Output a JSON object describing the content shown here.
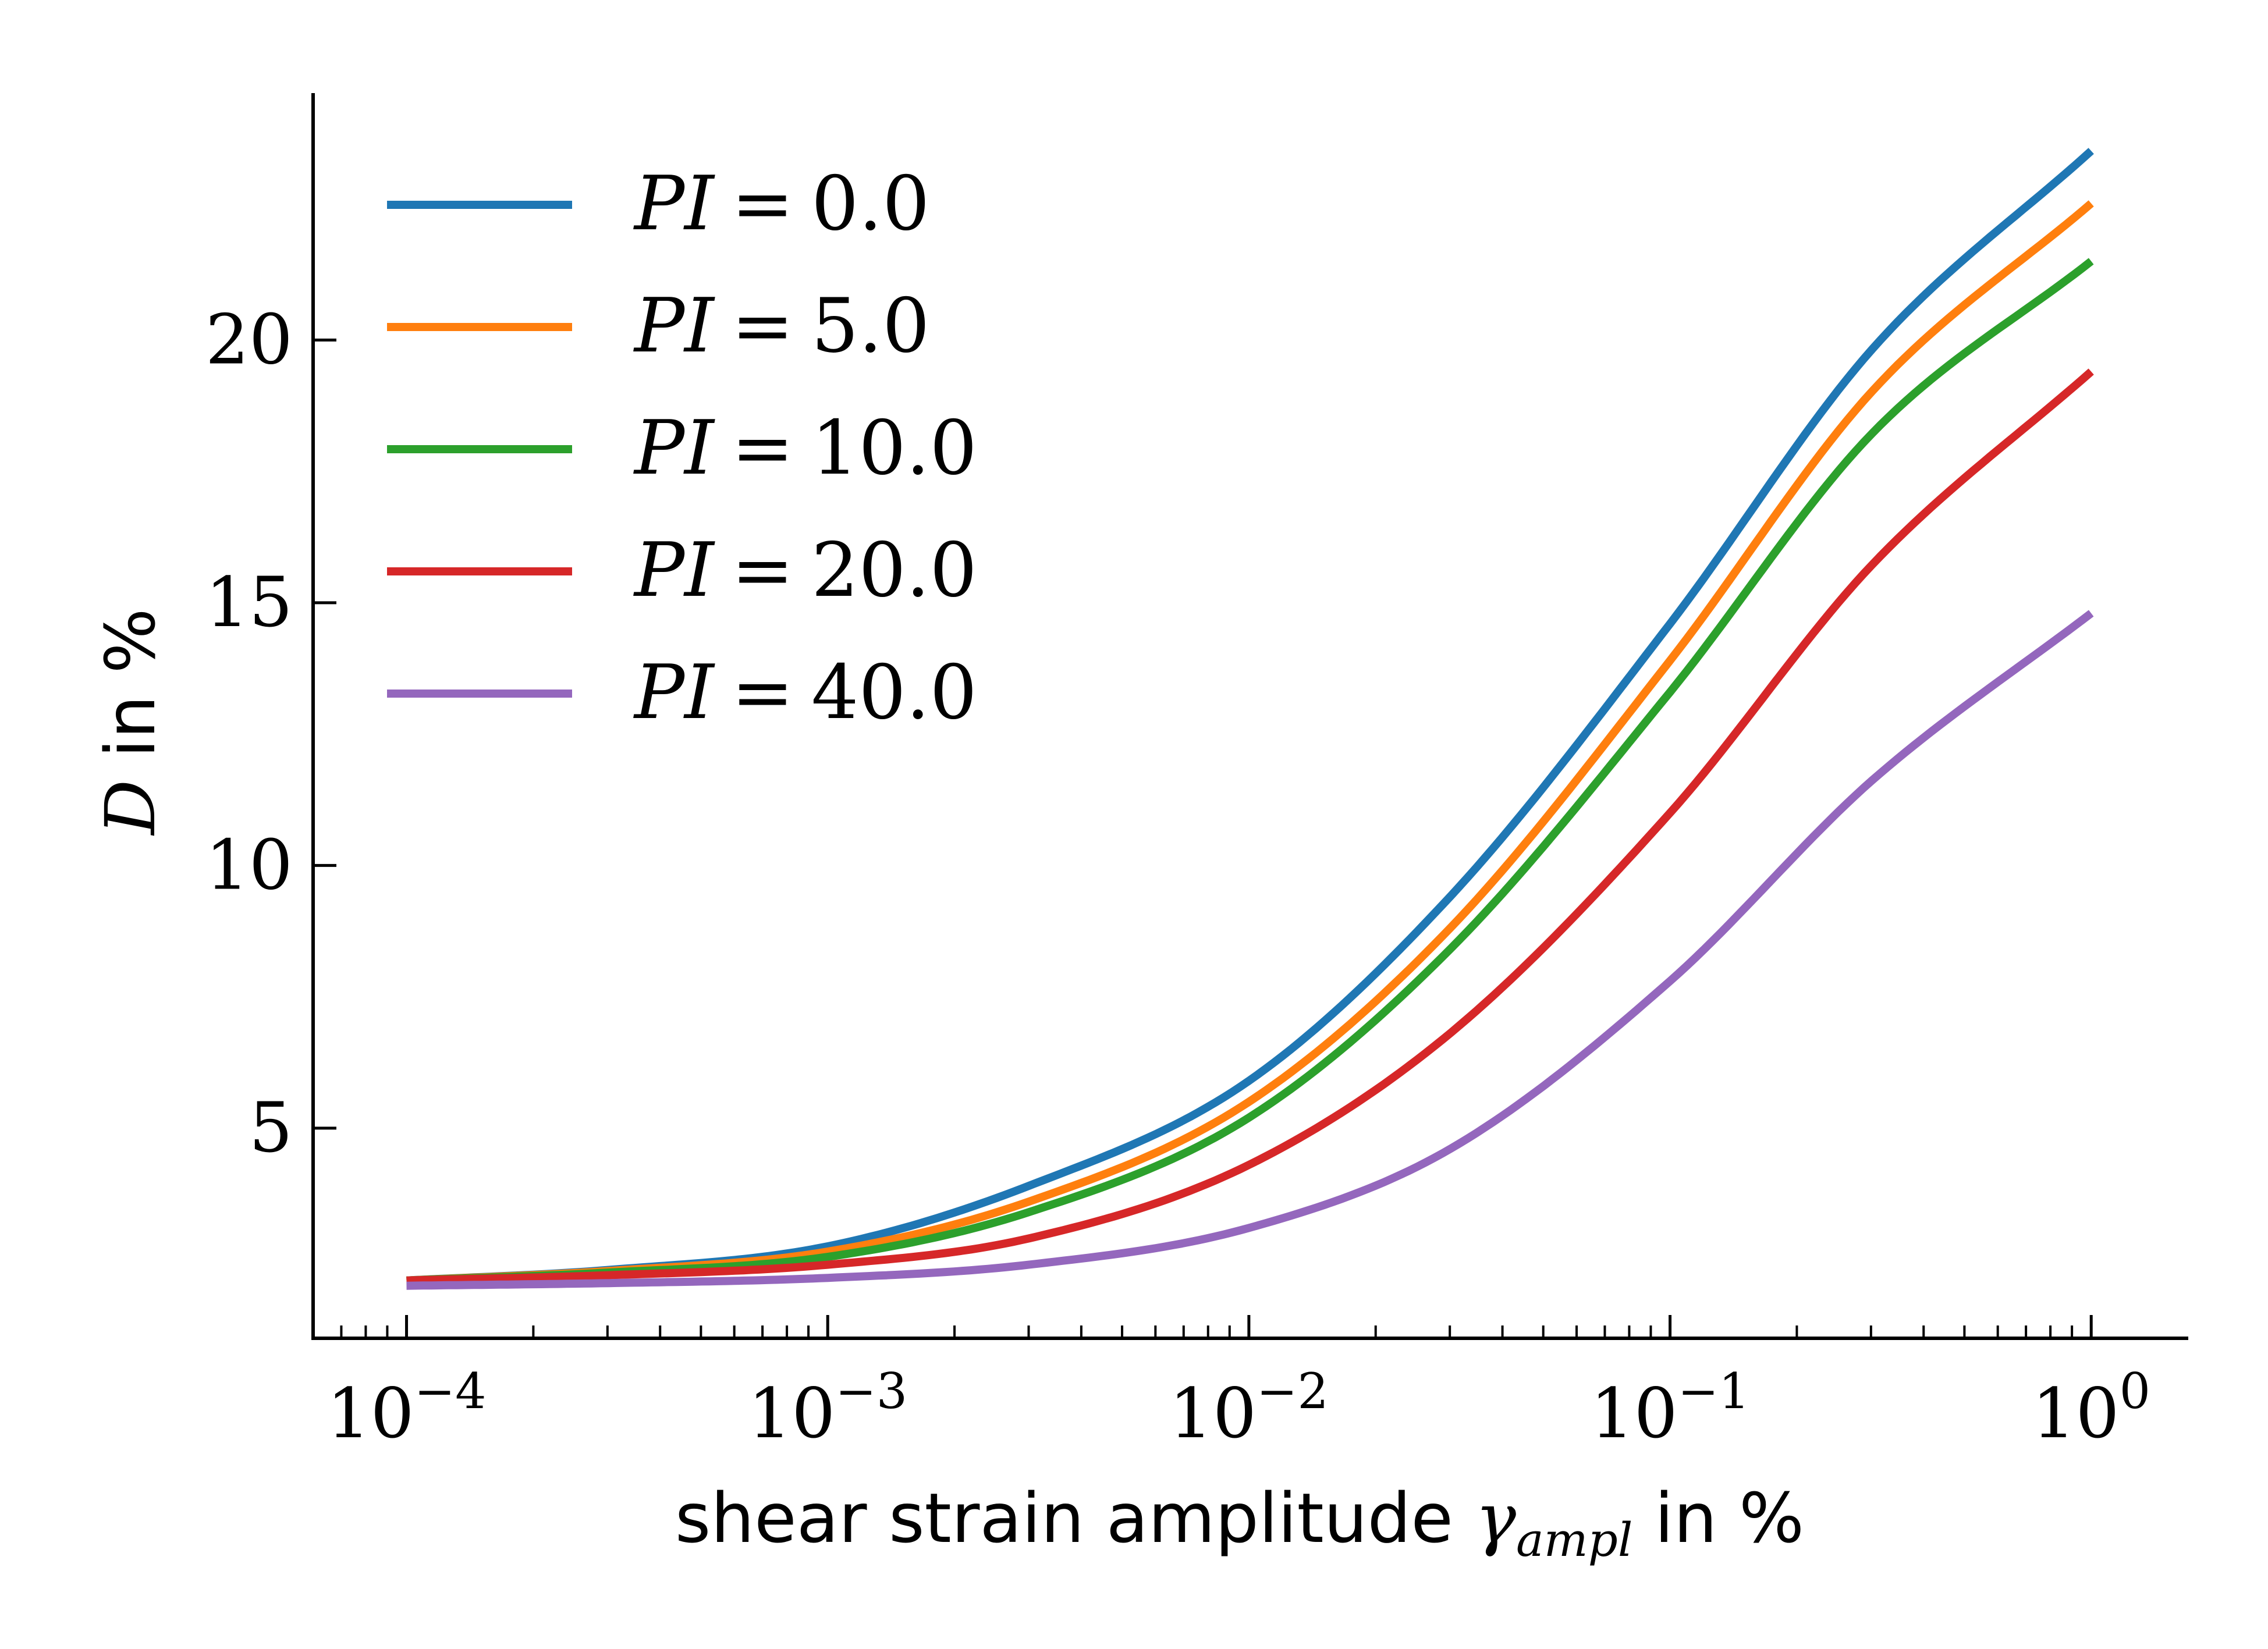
{
  "chart_data": {
    "type": "line",
    "xlabel": "shear strain amplitude γ_ampl in %",
    "xlabel_parts": {
      "text": "shear strain amplitude ",
      "symbol": "γ",
      "subscript": "ampl",
      "suffix": " in %"
    },
    "ylabel": "D in %",
    "ylabel_parts": {
      "symbol": "D",
      "suffix": " in %"
    },
    "x_scale": "log",
    "xlim": [
      6e-05,
      1.7
    ],
    "ylim": [
      1.0,
      24.7
    ],
    "x_ticks": [
      {
        "value": 0.0001,
        "base": "10",
        "exp": "−4"
      },
      {
        "value": 0.001,
        "base": "10",
        "exp": "−3"
      },
      {
        "value": 0.01,
        "base": "10",
        "exp": "−2"
      },
      {
        "value": 0.1,
        "base": "10",
        "exp": "−1"
      },
      {
        "value": 1,
        "base": "10",
        "exp": "0"
      }
    ],
    "y_ticks": [
      {
        "value": 5,
        "label": "5"
      },
      {
        "value": 10,
        "label": "10"
      },
      {
        "value": 15,
        "label": "15"
      },
      {
        "value": 20,
        "label": "20"
      }
    ],
    "grid": false,
    "legend_position": "top-left",
    "x": [
      0.0001,
      0.0003,
      0.001,
      0.003,
      0.01,
      0.03,
      0.1,
      0.3,
      1.0
    ],
    "series": [
      {
        "name": "PI = 0.0",
        "label_var": "PI",
        "label_eq": "=",
        "label_val": "0.0",
        "color": "#1f77b4",
        "values": [
          2.1,
          2.3,
          2.75,
          3.9,
          5.9,
          9.4,
          14.6,
          19.8,
          23.6
        ]
      },
      {
        "name": "PI = 5.0",
        "label_var": "PI",
        "label_eq": "=",
        "label_val": "5.0",
        "color": "#ff7f0e",
        "values": [
          2.1,
          2.28,
          2.65,
          3.6,
          5.5,
          8.8,
          13.9,
          19.0,
          22.6
        ]
      },
      {
        "name": "PI = 10.0",
        "label_var": "PI",
        "label_eq": "=",
        "label_val": "10.0",
        "color": "#2ca02c",
        "values": [
          2.1,
          2.25,
          2.55,
          3.4,
          5.2,
          8.4,
          13.3,
          18.2,
          21.5
        ]
      },
      {
        "name": "PI = 20.0",
        "label_var": "PI",
        "label_eq": "=",
        "label_val": "20.0",
        "color": "#d62728",
        "values": [
          2.1,
          2.2,
          2.4,
          2.9,
          4.3,
          6.8,
          11.0,
          15.7,
          19.4
        ]
      },
      {
        "name": "PI = 40.0",
        "label_var": "PI",
        "label_eq": "=",
        "label_val": "40.0",
        "color": "#9467bd",
        "values": [
          2.0,
          2.05,
          2.15,
          2.4,
          3.1,
          4.6,
          7.8,
          11.6,
          14.8
        ]
      }
    ]
  }
}
